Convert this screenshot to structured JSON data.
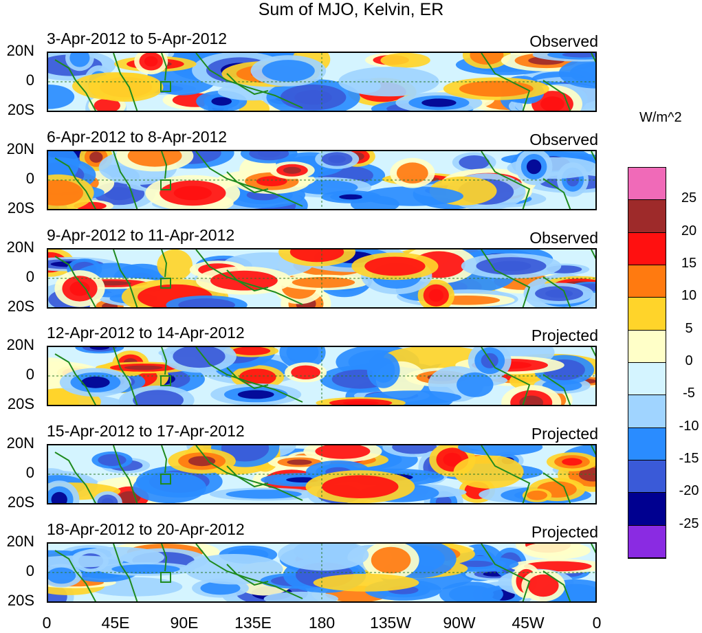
{
  "title": "Sum of MJO, Kelvin, ER",
  "unit": "W/m^2",
  "lat_labels": [
    "20N",
    "0",
    "20S"
  ],
  "lon_labels": [
    "0",
    "45E",
    "90E",
    "135E",
    "180",
    "135W",
    "90W",
    "45W",
    "0"
  ],
  "panels": [
    {
      "date": "3-Apr-2012 to 5-Apr-2012",
      "kind": "Observed"
    },
    {
      "date": "6-Apr-2012 to 8-Apr-2012",
      "kind": "Observed"
    },
    {
      "date": "9-Apr-2012 to 11-Apr-2012",
      "kind": "Observed"
    },
    {
      "date": "12-Apr-2012 to 14-Apr-2012",
      "kind": "Projected"
    },
    {
      "date": "15-Apr-2012 to 17-Apr-2012",
      "kind": "Projected"
    },
    {
      "date": "18-Apr-2012 to 20-Apr-2012",
      "kind": "Projected"
    }
  ],
  "colorbar": {
    "labels": [
      "25",
      "20",
      "15",
      "10",
      "5",
      "0",
      "-5",
      "-10",
      "-15",
      "-20",
      "-25"
    ],
    "colors": [
      "#f06ab8",
      "#9e2a2a",
      "#ff1010",
      "#ff7a10",
      "#ffd42a",
      "#ffffc8",
      "#d4f4ff",
      "#a0d4ff",
      "#2a8cff",
      "#3a5ad8",
      "#000090",
      "#8a2be2"
    ]
  }
}
